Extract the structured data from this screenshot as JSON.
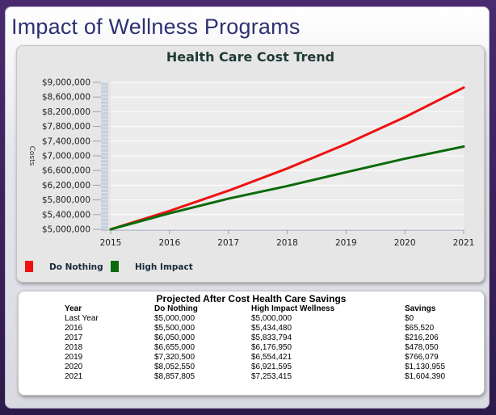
{
  "page": {
    "title": "Impact of Wellness Programs"
  },
  "chart_data": {
    "type": "line",
    "title": "Health Care Cost Trend",
    "xlabel": "",
    "ylabel": "Costs",
    "x": [
      2015,
      2016,
      2017,
      2018,
      2019,
      2020,
      2021
    ],
    "xticks": [
      "2015",
      "2016",
      "2017",
      "2018",
      "2019",
      "2020",
      "2021"
    ],
    "ylim": [
      5000000,
      9000000
    ],
    "yticks": [
      "$9,000,000",
      "$8,600,000",
      "$8,200,000",
      "$7,800,000",
      "$7,400,000",
      "$7,000,000",
      "$6,600,000",
      "$6,200,000",
      "$5,800,000",
      "$5,400,000",
      "$5,000,000"
    ],
    "ytick_values": [
      9000000,
      8600000,
      8200000,
      7800000,
      7400000,
      7000000,
      6600000,
      6200000,
      5800000,
      5400000,
      5000000
    ],
    "legend_position": "bottom-left",
    "series": [
      {
        "name": "Do Nothing",
        "color": "#ee1111",
        "values": [
          5000000,
          5500000,
          6050000,
          6655000,
          7320500,
          8052550,
          8857805
        ]
      },
      {
        "name": "High Impact",
        "color": "#0a6b0a",
        "values": [
          5000000,
          5434480,
          5833794,
          6176950,
          6554421,
          6921595,
          7253415
        ]
      }
    ]
  },
  "table": {
    "title": "Projected After Cost Health Care Savings",
    "headers": [
      "Year",
      "Do Nothing",
      "High Impact Wellness",
      "Savings"
    ],
    "rows": [
      [
        "Last Year",
        "$5,000,000",
        "$5,000,000",
        "$0"
      ],
      [
        "2016",
        "$5,500,000",
        "$5,434,480",
        "$65,520"
      ],
      [
        "2017",
        "$6,050,000",
        "$5,833,794",
        "$216,206"
      ],
      [
        "2018",
        "$6,655,000",
        "$6,176,950",
        "$478,050"
      ],
      [
        "2019",
        "$7,320,500",
        "$6,554,421",
        "$766,079"
      ],
      [
        "2020",
        "$8,052,550",
        "$6,921,595",
        "$1,130,955"
      ],
      [
        "2021",
        "$8,857,805",
        "$7,253,415",
        "$1,604,390"
      ]
    ]
  }
}
